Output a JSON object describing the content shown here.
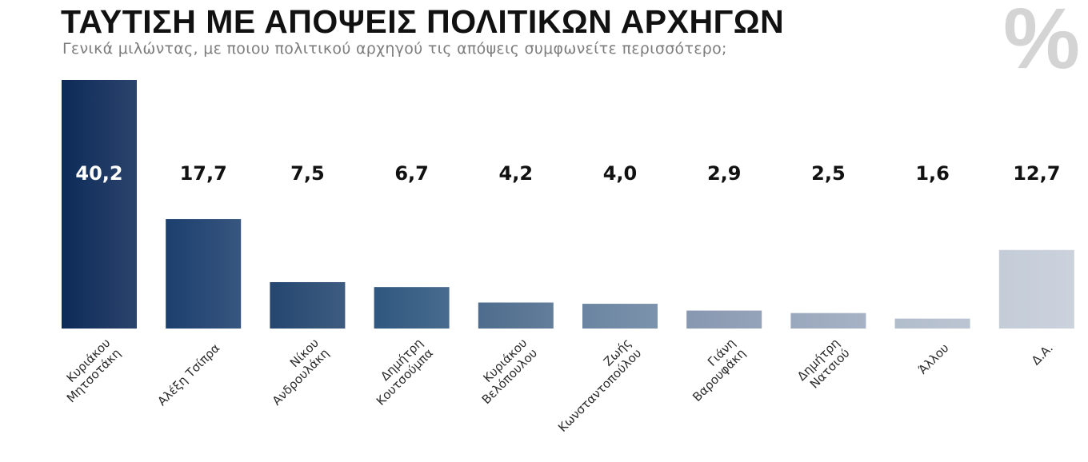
{
  "header": {
    "title": "ΤΑΥΤΙΣΗ ΜΕ ΑΠΟΨΕΙΣ ΠΟΛΙΤΙΚΩΝ ΑΡΧΗΓΩΝ",
    "subtitle": "Γενικά μιλώντας, με ποιου πολιτικού αρχηγού τις απόψεις συμφωνείτε περισσότερο;",
    "logo_symbol": "%"
  },
  "chart_data": {
    "type": "bar",
    "title": "ΤΑΥΤΙΣΗ ΜΕ ΑΠΟΨΕΙΣ ΠΟΛΙΤΙΚΩΝ ΑΡΧΗΓΩΝ",
    "subtitle": "Γενικά μιλώντας, με ποιου πολιτικού αρχηγού τις απόψεις συμφωνείτε περισσότερο;",
    "xlabel": "",
    "ylabel": "",
    "ylim": [
      0,
      40.2
    ],
    "grid": false,
    "categories": [
      [
        "Κυριάκου",
        "Μητσοτάκη"
      ],
      [
        "Αλέξη Τσίπρα"
      ],
      [
        "Νίκου",
        "Ανδρουλάκη"
      ],
      [
        "Δημήτρη",
        "Κουτσούμπα"
      ],
      [
        "Κυριάκου",
        "Βελόπουλου"
      ],
      [
        "Ζωής",
        "Κωνσταντοπούλου"
      ],
      [
        "Γιάνη",
        "Βαρουφάκη"
      ],
      [
        "Δημήτρη",
        "Νατσιού"
      ],
      [
        "Άλλου"
      ],
      [
        "Δ.Α."
      ]
    ],
    "values": [
      40.2,
      17.7,
      7.5,
      6.7,
      4.2,
      4.0,
      2.9,
      2.5,
      1.6,
      12.7
    ],
    "value_labels": [
      "40,2",
      "17,7",
      "7,5",
      "6,7",
      "4,2",
      "4,0",
      "2,9",
      "2,5",
      "1,6",
      "12,7"
    ],
    "colors": [
      "#0d2a58",
      "#1c3f6e",
      "#24466f",
      "#2f577f",
      "#4e6c8d",
      "#6a84a1",
      "#8797b0",
      "#9aa8bd",
      "#b2bdcc",
      "#c4ccd8"
    ],
    "value_label_colors": [
      "#ffffff",
      "#111111",
      "#111111",
      "#111111",
      "#111111",
      "#111111",
      "#111111",
      "#111111",
      "#111111",
      "#111111"
    ]
  }
}
